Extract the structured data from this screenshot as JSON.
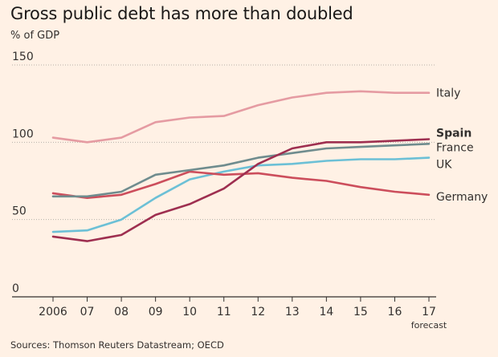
{
  "chart_data": {
    "type": "line",
    "title": "Gross public debt has more than doubled",
    "ylabel": "% of GDP",
    "xlabel": "",
    "ylim": [
      0,
      150
    ],
    "yticks": [
      0,
      50,
      100,
      150
    ],
    "grid": "horizontal dotted",
    "x": [
      2006,
      2007,
      2008,
      2009,
      2010,
      2011,
      2012,
      2013,
      2014,
      2015,
      2016,
      2017
    ],
    "tick_labels": [
      "2006",
      "07",
      "08",
      "09",
      "10",
      "11",
      "12",
      "13",
      "14",
      "15",
      "16",
      "17"
    ],
    "last_tick_note": "forecast",
    "series": [
      {
        "name": "Italy",
        "color": "#e59ba2",
        "bold_label": false,
        "values": [
          103,
          100,
          103,
          113,
          116,
          117,
          124,
          129,
          132,
          133,
          132,
          132
        ]
      },
      {
        "name": "UK",
        "color": "#6cc0d6",
        "bold_label": false,
        "values": [
          42,
          43,
          50,
          64,
          76,
          81,
          85,
          86,
          88,
          89,
          89,
          90
        ]
      },
      {
        "name": "Germany",
        "color": "#cc4e5c",
        "bold_label": false,
        "values": [
          67,
          64,
          66,
          73,
          81,
          79,
          80,
          77,
          75,
          71,
          68,
          66
        ]
      },
      {
        "name": "France",
        "color": "#6f8c8e",
        "bold_label": false,
        "values": [
          65,
          65,
          68,
          79,
          82,
          85,
          90,
          93,
          96,
          97,
          98,
          99
        ]
      },
      {
        "name": "Spain",
        "color": "#9e2f50",
        "bold_label": true,
        "values": [
          39,
          36,
          40,
          53,
          60,
          70,
          86,
          96,
          100,
          100,
          101,
          102
        ]
      }
    ]
  },
  "source": "Sources: Thomson Reuters Datastream; OECD"
}
